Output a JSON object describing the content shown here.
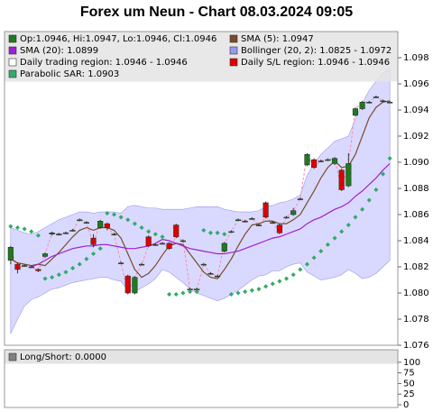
{
  "chart_data": [
    {
      "type": "candlestick",
      "title": "Forex um Neun - Chart 08.03.2024 09:05",
      "ohlc_name": "Op:1.0946, Hi:1.0947, Lo:1.0946, Cl:1.0946",
      "ohlc_color": "#1f7a1f",
      "up_color": "#1f7a1f",
      "down_color": "#dd0000",
      "close_line_color": "#ff88aa",
      "open": [
        1.0825,
        1.0822,
        1.0821,
        1.082,
        1.0818,
        1.0828,
        1.0845,
        1.0845,
        1.0846,
        1.0848,
        1.0856,
        1.0854,
        1.0842,
        1.085,
        1.0853,
        1.0845,
        1.0823,
        1.0813,
        1.08,
        1.0822,
        1.0843,
        1.0837,
        1.0838,
        1.0838,
        1.0852,
        1.084,
        1.0803,
        1.0803,
        1.0822,
        1.0815,
        1.0813,
        1.0832,
        1.0847,
        1.0856,
        1.0855,
        1.0857,
        1.0852,
        1.0869,
        1.0854,
        1.0852,
        1.0858,
        1.086,
        1.0872,
        1.0898,
        1.0902,
        1.0901,
        1.0902,
        1.0899,
        1.0894,
        1.0882,
        1.0936,
        1.0941,
        1.0946,
        1.095,
        1.0947,
        1.0946
      ],
      "high": [
        1.0836,
        1.0823,
        1.0822,
        1.0821,
        1.0819,
        1.0831,
        1.0847,
        1.0846,
        1.0847,
        1.0849,
        1.0857,
        1.0855,
        1.0845,
        1.0856,
        1.0854,
        1.0846,
        1.0824,
        1.0814,
        1.0813,
        1.0823,
        1.0844,
        1.0838,
        1.0839,
        1.0839,
        1.0853,
        1.0841,
        1.0804,
        1.0804,
        1.0823,
        1.0816,
        1.0814,
        1.0839,
        1.0848,
        1.0857,
        1.0856,
        1.0858,
        1.0853,
        1.087,
        1.0855,
        1.0853,
        1.0859,
        1.0865,
        1.0873,
        1.0907,
        1.0903,
        1.0902,
        1.0903,
        1.0904,
        1.0895,
        1.0907,
        1.0942,
        1.0947,
        1.0947,
        1.0951,
        1.0948,
        1.0947
      ],
      "low": [
        1.0822,
        1.0815,
        1.082,
        1.0819,
        1.0816,
        1.0827,
        1.0844,
        1.0844,
        1.0845,
        1.0847,
        1.0855,
        1.0853,
        1.0835,
        1.0849,
        1.0848,
        1.0844,
        1.0822,
        1.0799,
        1.0799,
        1.0821,
        1.0835,
        1.0836,
        1.0837,
        1.0833,
        1.0842,
        1.0839,
        1.0802,
        1.0801,
        1.0821,
        1.0814,
        1.0812,
        1.0831,
        1.0846,
        1.0855,
        1.0854,
        1.0856,
        1.0851,
        1.0857,
        1.0853,
        1.0845,
        1.0857,
        1.0859,
        1.0871,
        1.0897,
        1.0895,
        1.09,
        1.0901,
        1.0898,
        1.0878,
        1.0881,
        1.0935,
        1.094,
        1.0945,
        1.0949,
        1.0946,
        1.0946
      ],
      "close": [
        1.0835,
        1.0818,
        1.0821,
        1.082,
        1.0817,
        1.083,
        1.0846,
        1.0845,
        1.0846,
        1.0848,
        1.0856,
        1.0854,
        1.0837,
        1.0855,
        1.085,
        1.0845,
        1.0823,
        1.08,
        1.0812,
        1.0822,
        1.0836,
        1.0837,
        1.0838,
        1.0834,
        1.0843,
        1.084,
        1.0803,
        1.0803,
        1.0822,
        1.0815,
        1.0813,
        1.0838,
        1.0847,
        1.0856,
        1.0855,
        1.0857,
        1.0852,
        1.0858,
        1.0854,
        1.0846,
        1.0858,
        1.0863,
        1.0872,
        1.0906,
        1.0896,
        1.0901,
        1.0902,
        1.0903,
        1.0879,
        1.0899,
        1.0941,
        1.0946,
        1.0946,
        1.095,
        1.0947,
        1.0946
      ],
      "series": [
        {
          "name": "SMA (5): 1.0947",
          "kind": "line",
          "color": "#7a4a2a",
          "values": [
            1.0826,
            1.0823,
            1.0822,
            1.0821,
            1.0822,
            1.0821,
            1.0826,
            1.0831,
            1.0837,
            1.0843,
            1.0848,
            1.085,
            1.0848,
            1.085,
            1.085,
            1.0848,
            1.0842,
            1.083,
            1.0818,
            1.0812,
            1.0815,
            1.0821,
            1.0829,
            1.0836,
            1.0838,
            1.0837,
            1.083,
            1.0823,
            1.0816,
            1.0812,
            1.0811,
            1.0818,
            1.0826,
            1.0836,
            1.0845,
            1.0852,
            1.0853,
            1.0855,
            1.0855,
            1.0853,
            1.0853,
            1.0856,
            1.086,
            1.0869,
            1.0878,
            1.0888,
            1.0896,
            1.0901,
            1.0896,
            1.0897,
            1.0906,
            1.092,
            1.0934,
            1.0942,
            1.0946,
            1.0947
          ]
        },
        {
          "name": "SMA (20): 1.0899",
          "kind": "line",
          "color": "#a020d0",
          "values": [
            null,
            null,
            null,
            1.082,
            1.0822,
            1.0825,
            1.0828,
            1.083,
            1.0832,
            1.0834,
            1.0835,
            1.0836,
            1.0836,
            1.0837,
            1.0837,
            1.0836,
            1.0835,
            1.0834,
            1.0834,
            1.0835,
            1.0836,
            1.0838,
            1.0841,
            1.084,
            1.0838,
            1.0836,
            1.0834,
            1.0833,
            1.0832,
            1.0831,
            1.083,
            1.083,
            1.0831,
            1.0832,
            1.0834,
            1.0836,
            1.0838,
            1.084,
            1.0842,
            1.0843,
            1.0845,
            1.0847,
            1.0849,
            1.0853,
            1.0856,
            1.0858,
            1.0861,
            1.0864,
            1.0866,
            1.0869,
            1.0874,
            1.0878,
            1.0883,
            1.0888,
            1.0894,
            1.0899
          ]
        },
        {
          "name": "Bollinger (20, 2): 1.0825 - 1.0972",
          "kind": "band",
          "color": "#9999ee",
          "upper": [
            1.085,
            1.0848,
            1.0846,
            1.0845,
            1.0847,
            1.085,
            1.0853,
            1.0856,
            1.0858,
            1.086,
            1.0862,
            1.0862,
            1.0861,
            1.0862,
            1.0862,
            1.0862,
            1.0861,
            1.0866,
            1.0867,
            1.0866,
            1.0865,
            1.0865,
            1.0864,
            1.0864,
            1.0864,
            1.0864,
            1.0865,
            1.0866,
            1.0866,
            1.0866,
            1.0866,
            1.0864,
            1.0863,
            1.0862,
            1.0862,
            1.0862,
            1.0863,
            1.0866,
            1.0867,
            1.0869,
            1.087,
            1.0872,
            1.0875,
            1.089,
            1.0899,
            1.0906,
            1.0911,
            1.0916,
            1.0918,
            1.092,
            1.0933,
            1.0945,
            1.0955,
            1.0962,
            1.0968,
            1.0972
          ],
          "lower": [
            1.0769,
            1.078,
            1.079,
            1.0795,
            1.0797,
            1.08,
            1.0803,
            1.0804,
            1.0806,
            1.0808,
            1.0809,
            1.081,
            1.0811,
            1.0812,
            1.0812,
            1.081,
            1.0809,
            1.0802,
            1.0801,
            1.0804,
            1.0807,
            1.0811,
            1.0818,
            1.0816,
            1.0812,
            1.0808,
            1.0803,
            1.08,
            1.0798,
            1.0796,
            1.0794,
            1.0796,
            1.0799,
            1.0802,
            1.0806,
            1.081,
            1.0813,
            1.0814,
            1.0817,
            1.0817,
            1.082,
            1.0822,
            1.0823,
            1.0816,
            1.0813,
            1.081,
            1.0811,
            1.0812,
            1.0814,
            1.0818,
            1.0815,
            1.0811,
            1.0812,
            1.0815,
            1.082,
            1.0825
          ]
        },
        {
          "name": "Daily trading region: 1.0946 - 1.0946",
          "kind": "region",
          "color": "#ffffff"
        },
        {
          "name": "Daily S/L region: 1.0946 - 1.0946",
          "kind": "region",
          "color": "#dd0000"
        },
        {
          "name": "Parabolic SAR: 1.0903",
          "kind": "dots",
          "color": "#33aa66",
          "values": [
            1.0851,
            1.085,
            1.0849,
            1.0847,
            1.0844,
            1.0811,
            1.0812,
            1.0814,
            1.0816,
            1.0819,
            1.0822,
            1.0826,
            1.083,
            1.0834,
            1.0861,
            1.086,
            1.0858,
            1.0856,
            1.0853,
            1.085,
            1.0847,
            1.0845,
            1.0843,
            1.0799,
            1.0799,
            1.08,
            1.0801,
            1.0801,
            1.0848,
            1.0846,
            1.0846,
            1.0845,
            1.0799,
            1.08,
            1.0801,
            1.0802,
            1.0803,
            1.0805,
            1.0807,
            1.0809,
            1.0811,
            1.0814,
            1.0818,
            1.0822,
            1.0827,
            1.0832,
            1.0837,
            1.0842,
            1.0847,
            1.0852,
            1.0858,
            1.0864,
            1.0871,
            1.0879,
            1.0891,
            1.0903
          ]
        }
      ],
      "ylim": [
        1.076,
        1.1
      ],
      "yticks": [
        {
          "value": 1.076,
          "label": "1.076"
        },
        {
          "value": 1.078,
          "label": "1.078"
        },
        {
          "value": 1.08,
          "label": "1.080"
        },
        1.082,
        1.084,
        1.086,
        1.088,
        {
          "value": 1.09,
          "label": "1.090"
        },
        1.092,
        1.094,
        1.096,
        1.098
      ]
    },
    {
      "type": "line",
      "series": [
        {
          "name": "Long/Short: 0.0000",
          "color": "#808080",
          "values": []
        }
      ],
      "ylim": [
        0,
        125
      ],
      "yticks": [
        0,
        25,
        50,
        75,
        100
      ]
    }
  ]
}
